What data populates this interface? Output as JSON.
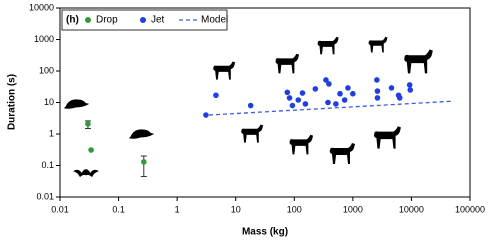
{
  "chart_data": {
    "type": "scatter",
    "panel_label": "(h)",
    "xlabel": "Mass (kg)",
    "ylabel": "Duration (s)",
    "log_x": true,
    "log_y": true,
    "xlim": [
      0.01,
      100000
    ],
    "xticks": [
      0.01,
      0.1,
      1,
      10,
      100,
      1000,
      10000,
      100000
    ],
    "ylim": [
      0.01,
      10000
    ],
    "yticks": [
      0.01,
      0.1,
      1,
      10,
      100,
      1000,
      10000
    ],
    "legend": "top-left",
    "series": [
      {
        "name": "Drop",
        "color": "#2e9a3a",
        "style": "markers",
        "x": [
          0.03,
          0.034,
          0.27
        ],
        "values": [
          2.1,
          0.31,
          0.13
        ],
        "y_low": [
          1.5,
          null,
          0.045
        ],
        "y_high": [
          2.6,
          null,
          0.2
        ]
      },
      {
        "name": "Jet",
        "color": "#1f3fe0",
        "style": "markers",
        "x": [
          3.1,
          4.6,
          18,
          76,
          83,
          93,
          117,
          138,
          155,
          229,
          347,
          390,
          376,
          513,
          603,
          724,
          824,
          1000,
          2570,
          2630,
          2630,
          4570,
          6030,
          6310,
          9330,
          9550
        ],
        "values": [
          4,
          17,
          8,
          21,
          14,
          8,
          12,
          20,
          9,
          27,
          52,
          39,
          10,
          9,
          19,
          12,
          29,
          19,
          52,
          23,
          14,
          29,
          17,
          14,
          36,
          25
        ]
      },
      {
        "name": "Model",
        "color": "#3b5be6",
        "style": "dashed",
        "x": [
          3.5,
          50000
        ],
        "values": [
          4,
          11
        ]
      }
    ]
  }
}
